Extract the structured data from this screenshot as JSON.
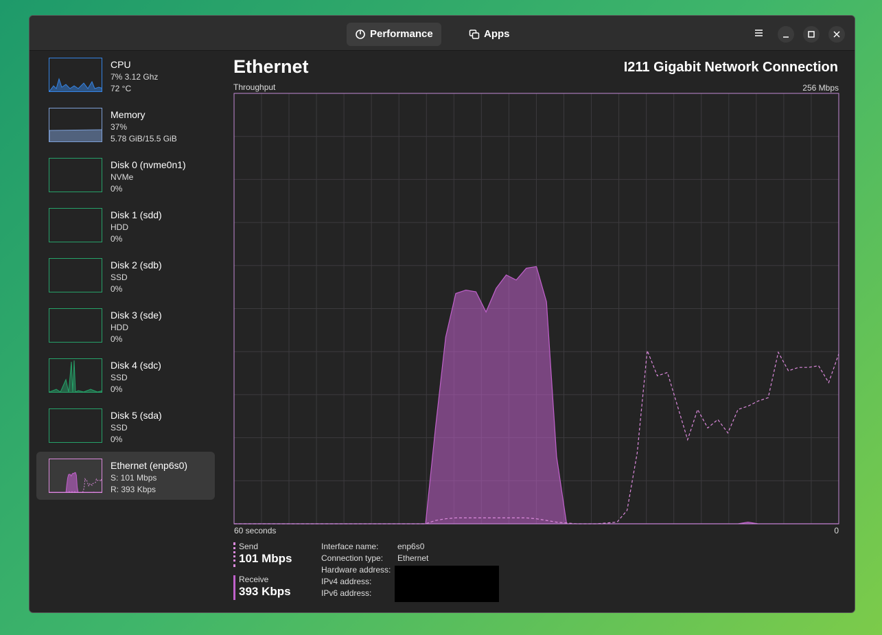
{
  "header": {
    "tabs": [
      "Performance",
      "Apps"
    ]
  },
  "sidebar": {
    "items": [
      {
        "name": "CPU",
        "line1": "7% 3.12 Ghz",
        "line2": "72 °C"
      },
      {
        "name": "Memory",
        "line1": "37%",
        "line2": "5.78 GiB/15.5 GiB"
      },
      {
        "name": "Disk 0 (nvme0n1)",
        "line1": "NVMe",
        "line2": "0%"
      },
      {
        "name": "Disk 1 (sdd)",
        "line1": "HDD",
        "line2": "0%"
      },
      {
        "name": "Disk 2 (sdb)",
        "line1": "SSD",
        "line2": "0%"
      },
      {
        "name": "Disk 3 (sde)",
        "line1": "HDD",
        "line2": "0%"
      },
      {
        "name": "Disk 4 (sdc)",
        "line1": "SSD",
        "line2": "0%"
      },
      {
        "name": "Disk 5 (sda)",
        "line1": "SSD",
        "line2": "0%"
      },
      {
        "name": "Ethernet (enp6s0)",
        "line1": "S: 101 Mbps",
        "line2": "R: 393 Kbps"
      }
    ]
  },
  "main": {
    "title": "Ethernet",
    "device": "I211 Gigabit Network Connection"
  },
  "chart_data": {
    "type": "area",
    "title": "Throughput",
    "x": [
      60,
      59,
      58,
      57,
      56,
      55,
      54,
      53,
      52,
      51,
      50,
      49,
      48,
      47,
      46,
      45,
      44,
      43,
      42,
      41,
      40,
      39,
      38,
      37,
      36,
      35,
      34,
      33,
      32,
      31,
      30,
      29,
      28,
      27,
      26,
      25,
      24,
      23,
      22,
      21,
      20,
      19,
      18,
      17,
      16,
      15,
      14,
      13,
      12,
      11,
      10,
      9,
      8,
      7,
      6,
      5,
      4,
      3,
      2,
      1,
      0
    ],
    "xlim": [
      60,
      0
    ],
    "xticks": [
      {
        "value": 60,
        "label": "60 seconds"
      },
      0
    ],
    "ylim": [
      0,
      256
    ],
    "yticks": [
      {
        "value": 256,
        "label": "256 Mbps"
      }
    ],
    "grid": true,
    "series": [
      {
        "name": "Send",
        "current": "101 Mbps",
        "color": "#dc8add",
        "style": "dashed",
        "values": [
          0,
          0,
          0,
          0,
          0,
          0,
          0,
          0,
          0,
          0,
          0,
          0,
          0,
          0,
          0,
          0,
          0,
          0,
          0,
          0,
          2,
          3,
          3.5,
          3.5,
          3.5,
          3.5,
          3.5,
          3.5,
          3.5,
          3.5,
          3,
          2,
          1,
          0.5,
          0,
          0,
          0,
          0.5,
          1,
          8,
          42,
          103,
          88,
          90,
          70,
          50,
          68,
          57,
          62,
          54,
          68,
          70,
          73,
          75,
          102,
          91,
          93,
          93,
          94,
          84,
          101
        ]
      },
      {
        "name": "Receive",
        "current": "393 Kbps",
        "color": "#c061cb",
        "style": "filled",
        "values": [
          0,
          0,
          0,
          0,
          0,
          0,
          0,
          0,
          0,
          0,
          0,
          0,
          0,
          0,
          0,
          0,
          0,
          0,
          0,
          0,
          58,
          111,
          137,
          139,
          138,
          126,
          140,
          148,
          145,
          152,
          153,
          132,
          40,
          0,
          0,
          0,
          0,
          0,
          0,
          0,
          0,
          0,
          0,
          0,
          0,
          0,
          0,
          0,
          0,
          0,
          0,
          1,
          0,
          0,
          0,
          0,
          0,
          0,
          0,
          0,
          0
        ]
      }
    ]
  },
  "details": {
    "rows": [
      {
        "label": "Interface name:",
        "value": "enp6s0"
      },
      {
        "label": "Connection type:",
        "value": "Ethernet"
      },
      {
        "label": "Hardware address:"
      },
      {
        "label": "IPv4 address:"
      },
      {
        "label": "IPv6 address:"
      }
    ]
  }
}
